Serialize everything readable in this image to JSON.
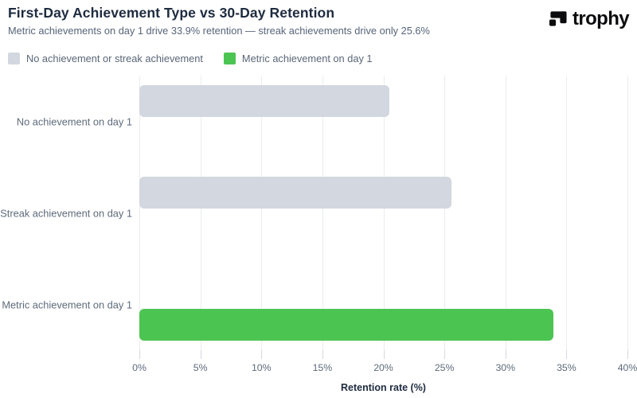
{
  "header": {
    "title": "First-Day Achievement Type vs 30-Day Retention",
    "subtitle": "Metric achievements on day 1 drive 33.9% retention — streak achievements drive only 25.6%",
    "logo_text": "trophy"
  },
  "chart_data": {
    "type": "bar",
    "orientation": "horizontal",
    "title": "First-Day Achievement Type vs 30-Day Retention",
    "categories": [
      "No achievement on day 1",
      "Streak achievement on day 1",
      "Metric achievement on day 1"
    ],
    "series": [
      {
        "name": "No achievement or streak achievement",
        "color": "#d3d7df",
        "values": [
          20.5,
          25.6,
          null
        ]
      },
      {
        "name": "Metric achievement on day 1",
        "color": "#4cc452",
        "values": [
          null,
          null,
          33.9
        ]
      }
    ],
    "xlabel": "Retention rate (%)",
    "xlim": [
      0,
      40
    ],
    "xticks": [
      0,
      5,
      10,
      15,
      20,
      25,
      30,
      35,
      40
    ],
    "xtick_suffix": "%",
    "grid": true,
    "legend_position": "top-left"
  },
  "colors": {
    "title_text": "#1e2b40",
    "subtitle_text": "#57647a",
    "axis_text": "#5e6b7c",
    "gridline": "#eaecf0",
    "bar_gray": "#d3d7df",
    "bar_green": "#4cc452",
    "logo_black": "#0c0c0e"
  }
}
